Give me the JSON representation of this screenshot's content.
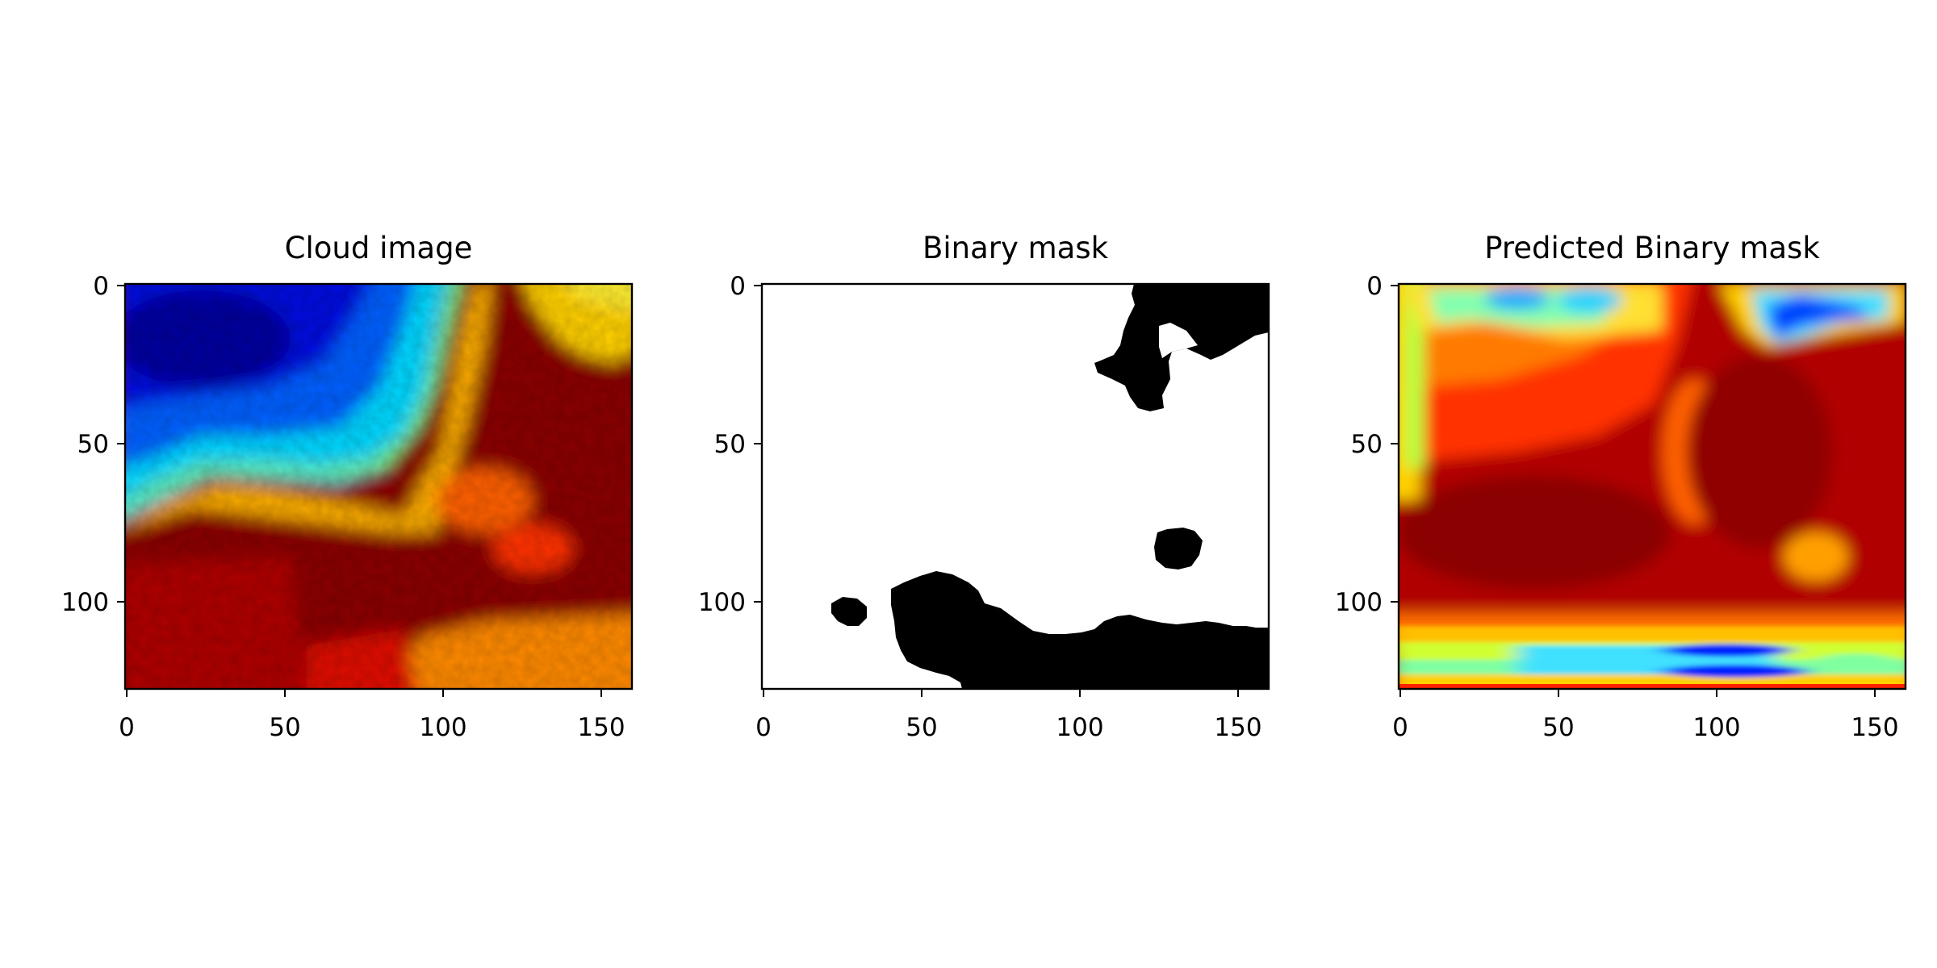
{
  "figure": {
    "colormap": "jet",
    "image_extent": {
      "x": [
        0,
        160
      ],
      "y": [
        0,
        128
      ]
    },
    "x_ticks": [
      "0",
      "50",
      "100",
      "150"
    ],
    "y_ticks": [
      "0",
      "50",
      "100"
    ],
    "panels": [
      {
        "id": "cloud",
        "title": "Cloud image",
        "content": "jet-colormap field: blue region top-left, cyan/green band, dark red lower half and right, orange patch bottom-right"
      },
      {
        "id": "mask",
        "title": "Binary mask",
        "content": "white background with black regions: top-right blob near x 115-160, y 0-40; small blob near x 125-140, y 78-90; small blob near x 22-32, y 98-107; large lower blob spanning x 40-160, y 92-128"
      },
      {
        "id": "pred",
        "title": "Predicted Binary mask",
        "content": "jet-colormap prediction: mostly dark red/red, yellow-green strip along left edge and top, blue streaks top-right, yellow/cyan/blue bands along the bottom"
      }
    ]
  },
  "colors": {
    "jet_dark_blue": "#00007f",
    "jet_blue": "#0000ff",
    "jet_cyan": "#00ffff",
    "jet_yellow": "#ffff00",
    "jet_red": "#ff0000",
    "jet_dark_red": "#7f0000",
    "mask_foreground": "#000000",
    "mask_background": "#ffffff"
  }
}
